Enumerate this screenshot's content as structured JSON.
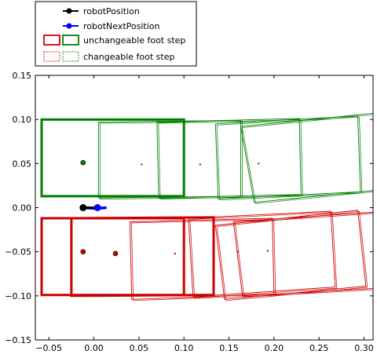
{
  "chart_data": {
    "type": "scatter",
    "xlim": [
      -0.065,
      0.31
    ],
    "ylim": [
      -0.15,
      0.15
    ],
    "x_ticks": [
      -0.05,
      0.0,
      0.05,
      0.1,
      0.15,
      0.2,
      0.25,
      0.3
    ],
    "x_tick_labels": [
      "−0.05",
      "0.00",
      "0.05",
      "0.10",
      "0.15",
      "0.20",
      "0.25",
      "0.30"
    ],
    "y_ticks": [
      -0.15,
      -0.1,
      -0.05,
      0.0,
      0.05,
      0.1,
      0.15
    ],
    "y_tick_labels": [
      "−0.15",
      "−0.10",
      "−0.05",
      "0.00",
      "0.05",
      "0.10",
      "0.15"
    ],
    "grid": false,
    "legend_placement": "top-left, outside axes",
    "legend": [
      {
        "label": "robotPosition",
        "kind": "point",
        "color": "#000000"
      },
      {
        "label": "robotNextPosition",
        "kind": "point",
        "color": "#0000ff"
      },
      {
        "label": "unchangeable foot step",
        "kind": "box-solid",
        "colors": [
          "#cc0000",
          "#007f00"
        ]
      },
      {
        "label": "changeable foot step",
        "kind": "box-dotted",
        "colors": [
          "#cc0000",
          "#007f00"
        ]
      }
    ],
    "robot_position": {
      "x": -0.012,
      "y": 0.0,
      "color": "#000000"
    },
    "robot_next_position": {
      "x": 0.004,
      "y": 0.0,
      "color": "#0000ff"
    },
    "robot_path": {
      "color": "#0000ff",
      "points": [
        [
          -0.012,
          0.0
        ],
        [
          0.003,
          -0.001
        ],
        [
          0.014,
          0.0
        ]
      ]
    },
    "unchangeable_steps": [
      {
        "color": "#007f00",
        "corners": [
          [
            -0.058,
            0.1
          ],
          [
            0.1,
            0.1
          ],
          [
            0.1,
            0.013
          ],
          [
            -0.058,
            0.013
          ]
        ]
      },
      {
        "color": "#cc0000",
        "corners": [
          [
            -0.058,
            -0.012
          ],
          [
            0.1,
            -0.012
          ],
          [
            0.1,
            -0.099
          ],
          [
            -0.058,
            -0.099
          ]
        ]
      },
      {
        "color": "#cc0000",
        "corners": [
          [
            -0.025,
            -0.012
          ],
          [
            0.133,
            -0.011
          ],
          [
            0.133,
            -0.099
          ],
          [
            -0.025,
            -0.1
          ]
        ]
      }
    ],
    "changeable_steps": [
      {
        "color": "#007f00",
        "corners": [
          [
            0.005,
            0.097
          ],
          [
            0.163,
            0.099
          ],
          [
            0.163,
            0.013
          ],
          [
            0.005,
            0.011
          ]
        ]
      },
      {
        "color": "#007f00",
        "corners": [
          [
            0.07,
            0.097
          ],
          [
            0.228,
            0.101
          ],
          [
            0.23,
            0.015
          ],
          [
            0.072,
            0.011
          ]
        ]
      },
      {
        "color": "#007f00",
        "corners": [
          [
            0.135,
            0.095
          ],
          [
            0.293,
            0.104
          ],
          [
            0.296,
            0.018
          ],
          [
            0.138,
            0.01
          ]
        ]
      },
      {
        "color": "#007f00",
        "corners": [
          [
            0.163,
            0.092
          ],
          [
            0.32,
            0.108
          ],
          [
            0.336,
            0.022
          ],
          [
            0.178,
            0.006
          ]
        ]
      },
      {
        "color": "#cc0000",
        "corners": [
          [
            0.04,
            -0.016
          ],
          [
            0.198,
            -0.012
          ],
          [
            0.2,
            -0.098
          ],
          [
            0.042,
            -0.104
          ]
        ]
      },
      {
        "color": "#cc0000",
        "corners": [
          [
            0.105,
            -0.012
          ],
          [
            0.263,
            -0.004
          ],
          [
            0.268,
            -0.09
          ],
          [
            0.11,
            -0.101
          ]
        ]
      },
      {
        "color": "#cc0000",
        "corners": [
          [
            0.135,
            -0.02
          ],
          [
            0.293,
            -0.003
          ],
          [
            0.302,
            -0.089
          ],
          [
            0.145,
            -0.104
          ]
        ]
      },
      {
        "color": "#cc0000",
        "corners": [
          [
            0.155,
            -0.016
          ],
          [
            0.312,
            -0.005
          ],
          [
            0.322,
            -0.091
          ],
          [
            0.165,
            -0.1
          ]
        ]
      }
    ],
    "step_center_markers": [
      {
        "x": -0.012,
        "y": 0.051,
        "color": "#007f00",
        "size": "large"
      },
      {
        "x": 0.053,
        "y": 0.049,
        "color": "#007f00",
        "size": "small"
      },
      {
        "x": 0.118,
        "y": 0.049,
        "color": "#007f00",
        "size": "small"
      },
      {
        "x": 0.183,
        "y": 0.05,
        "color": "#007f00",
        "size": "small"
      },
      {
        "x": -0.012,
        "y": -0.05,
        "color": "#cc0000",
        "size": "large"
      },
      {
        "x": 0.024,
        "y": -0.052,
        "color": "#cc0000",
        "size": "large"
      },
      {
        "x": 0.09,
        "y": -0.052,
        "color": "#cc0000",
        "size": "small"
      },
      {
        "x": 0.16,
        "y": -0.05,
        "color": "#cc0000",
        "size": "small"
      },
      {
        "x": 0.193,
        "y": -0.049,
        "color": "#cc0000",
        "size": "small"
      }
    ]
  }
}
